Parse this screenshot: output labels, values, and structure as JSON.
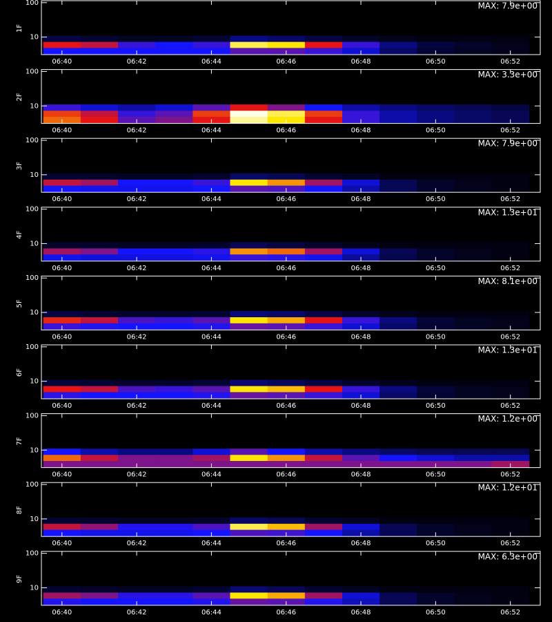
{
  "chart_data": [
    {
      "type": "heatmap",
      "ylabel": "1F",
      "annotation": "MAX: 7.9e+00",
      "log_y": true,
      "xlim": [
        39.45,
        52.8
      ],
      "ylim": [
        3.1,
        114
      ],
      "xticks": [
        {
          "value": 40,
          "label": "06:40"
        },
        {
          "value": 42,
          "label": "06:42"
        },
        {
          "value": 44,
          "label": "06:44"
        },
        {
          "value": 46,
          "label": "06:46"
        },
        {
          "value": 48,
          "label": "06:48"
        },
        {
          "value": 50,
          "label": "06:50"
        },
        {
          "value": 52,
          "label": "06:52"
        }
      ],
      "yticks": [
        10,
        100
      ],
      "x": [
        40,
        41,
        42,
        43,
        44,
        45,
        46,
        47,
        48,
        49,
        50,
        51,
        52
      ],
      "y": [
        4,
        6,
        9
      ],
      "z": [
        [
          0.3,
          0.3,
          0.3,
          0.3,
          0.3,
          0.4,
          0.4,
          0.35,
          0.25,
          0.12,
          0.06,
          0.04,
          0.03
        ],
        [
          0.6,
          0.55,
          0.35,
          0.3,
          0.35,
          0.9,
          0.85,
          0.6,
          0.35,
          0.15,
          0.08,
          0.05,
          0.03
        ],
        [
          0.08,
          0.06,
          0.04,
          0.04,
          0.06,
          0.15,
          0.12,
          0.08,
          0.05,
          0.03,
          0.02,
          0.02,
          0.02
        ]
      ]
    },
    {
      "type": "heatmap",
      "ylabel": "2F",
      "annotation": "MAX: 3.3e+00",
      "log_y": true,
      "xlim": [
        39.45,
        52.8
      ],
      "ylim": [
        3.1,
        114
      ],
      "xticks": [
        {
          "value": 40,
          "label": "06:40"
        },
        {
          "value": 42,
          "label": "06:42"
        },
        {
          "value": 44,
          "label": "06:44"
        },
        {
          "value": 46,
          "label": "06:46"
        },
        {
          "value": 48,
          "label": "06:48"
        },
        {
          "value": 50,
          "label": "06:50"
        },
        {
          "value": 52,
          "label": "06:52"
        }
      ],
      "yticks": [
        10,
        100
      ],
      "x": [
        40,
        41,
        42,
        43,
        44,
        45,
        46,
        47,
        48,
        49,
        50,
        51,
        52
      ],
      "y": [
        4,
        6,
        9
      ],
      "z": [
        [
          0.7,
          0.6,
          0.4,
          0.45,
          0.6,
          0.95,
          0.85,
          0.6,
          0.35,
          0.2,
          0.15,
          0.12,
          0.1
        ],
        [
          0.65,
          0.55,
          0.35,
          0.4,
          0.65,
          1,
          0.9,
          0.65,
          0.35,
          0.2,
          0.15,
          0.12,
          0.1
        ],
        [
          0.35,
          0.25,
          0.2,
          0.25,
          0.4,
          0.6,
          0.45,
          0.3,
          0.2,
          0.15,
          0.12,
          0.1,
          0.08
        ]
      ]
    },
    {
      "type": "heatmap",
      "ylabel": "3F",
      "annotation": "MAX: 7.9e+00",
      "log_y": true,
      "xlim": [
        39.45,
        52.8
      ],
      "ylim": [
        3.1,
        114
      ],
      "xticks": [
        {
          "value": 40,
          "label": "06:40"
        },
        {
          "value": 42,
          "label": "06:42"
        },
        {
          "value": 44,
          "label": "06:44"
        },
        {
          "value": 46,
          "label": "06:46"
        },
        {
          "value": 48,
          "label": "06:48"
        },
        {
          "value": 50,
          "label": "06:50"
        },
        {
          "value": 52,
          "label": "06:52"
        }
      ],
      "yticks": [
        10,
        100
      ],
      "x": [
        40,
        41,
        42,
        43,
        44,
        45,
        46,
        47,
        48,
        49,
        50,
        51,
        52
      ],
      "y": [
        4,
        6,
        9
      ],
      "z": [
        [
          0.3,
          0.28,
          0.28,
          0.28,
          0.3,
          0.4,
          0.38,
          0.3,
          0.2,
          0.1,
          0.05,
          0.03,
          0.02
        ],
        [
          0.55,
          0.5,
          0.3,
          0.3,
          0.35,
          0.85,
          0.75,
          0.5,
          0.25,
          0.1,
          0.05,
          0.03,
          0.02
        ],
        [
          0.06,
          0.05,
          0.04,
          0.04,
          0.05,
          0.12,
          0.1,
          0.06,
          0.04,
          0.02,
          0.02,
          0.02,
          0.02
        ]
      ]
    },
    {
      "type": "heatmap",
      "ylabel": "4F",
      "annotation": "MAX: 1.3e+01",
      "log_y": true,
      "xlim": [
        39.45,
        52.8
      ],
      "ylim": [
        3.1,
        114
      ],
      "xticks": [
        {
          "value": 40,
          "label": "06:40"
        },
        {
          "value": 42,
          "label": "06:42"
        },
        {
          "value": 44,
          "label": "06:44"
        },
        {
          "value": 46,
          "label": "06:46"
        },
        {
          "value": 48,
          "label": "06:48"
        },
        {
          "value": 50,
          "label": "06:50"
        },
        {
          "value": 52,
          "label": "06:52"
        }
      ],
      "yticks": [
        10,
        100
      ],
      "x": [
        40,
        41,
        42,
        43,
        44,
        45,
        46,
        47,
        48,
        49,
        50,
        51,
        52
      ],
      "y": [
        4,
        6,
        9
      ],
      "z": [
        [
          0.28,
          0.26,
          0.26,
          0.26,
          0.28,
          0.35,
          0.33,
          0.28,
          0.18,
          0.09,
          0.05,
          0.03,
          0.02
        ],
        [
          0.5,
          0.45,
          0.3,
          0.3,
          0.33,
          0.75,
          0.7,
          0.5,
          0.25,
          0.1,
          0.05,
          0.03,
          0.02
        ],
        [
          0.05,
          0.05,
          0.04,
          0.04,
          0.05,
          0.1,
          0.08,
          0.05,
          0.03,
          0.02,
          0.02,
          0.02,
          0.02
        ]
      ]
    },
    {
      "type": "heatmap",
      "ylabel": "5F",
      "annotation": "MAX: 8.1e+00",
      "log_y": true,
      "xlim": [
        39.45,
        52.8
      ],
      "ylim": [
        3.1,
        114
      ],
      "xticks": [
        {
          "value": 40,
          "label": "06:40"
        },
        {
          "value": 42,
          "label": "06:42"
        },
        {
          "value": 44,
          "label": "06:44"
        },
        {
          "value": 46,
          "label": "06:46"
        },
        {
          "value": 48,
          "label": "06:48"
        },
        {
          "value": 50,
          "label": "06:50"
        },
        {
          "value": 52,
          "label": "06:52"
        }
      ],
      "yticks": [
        10,
        100
      ],
      "x": [
        40,
        41,
        42,
        43,
        44,
        45,
        46,
        47,
        48,
        49,
        50,
        51,
        52
      ],
      "y": [
        4,
        6,
        9
      ],
      "z": [
        [
          0.35,
          0.32,
          0.3,
          0.3,
          0.32,
          0.42,
          0.4,
          0.35,
          0.25,
          0.12,
          0.06,
          0.04,
          0.03
        ],
        [
          0.62,
          0.55,
          0.38,
          0.35,
          0.4,
          0.85,
          0.78,
          0.6,
          0.35,
          0.15,
          0.07,
          0.04,
          0.03
        ],
        [
          0.08,
          0.06,
          0.05,
          0.05,
          0.06,
          0.14,
          0.12,
          0.08,
          0.05,
          0.03,
          0.02,
          0.02,
          0.02
        ]
      ]
    },
    {
      "type": "heatmap",
      "ylabel": "6F",
      "annotation": "MAX: 1.3e+01",
      "log_y": true,
      "xlim": [
        39.45,
        52.8
      ],
      "ylim": [
        3.1,
        114
      ],
      "xticks": [
        {
          "value": 40,
          "label": "06:40"
        },
        {
          "value": 42,
          "label": "06:42"
        },
        {
          "value": 44,
          "label": "06:44"
        },
        {
          "value": 46,
          "label": "06:46"
        },
        {
          "value": 48,
          "label": "06:48"
        },
        {
          "value": 50,
          "label": "06:50"
        },
        {
          "value": 52,
          "label": "06:52"
        }
      ],
      "yticks": [
        10,
        100
      ],
      "x": [
        40,
        41,
        42,
        43,
        44,
        45,
        46,
        47,
        48,
        49,
        50,
        51,
        52
      ],
      "y": [
        4,
        6,
        9
      ],
      "z": [
        [
          0.33,
          0.3,
          0.3,
          0.3,
          0.32,
          0.42,
          0.4,
          0.35,
          0.25,
          0.12,
          0.06,
          0.04,
          0.03
        ],
        [
          0.6,
          0.55,
          0.38,
          0.35,
          0.4,
          0.85,
          0.8,
          0.6,
          0.35,
          0.15,
          0.07,
          0.04,
          0.03
        ],
        [
          0.07,
          0.06,
          0.05,
          0.05,
          0.06,
          0.13,
          0.11,
          0.08,
          0.05,
          0.03,
          0.02,
          0.02,
          0.02
        ]
      ]
    },
    {
      "type": "heatmap",
      "ylabel": "7F",
      "annotation": "MAX: 1.2e+00",
      "log_y": true,
      "xlim": [
        39.45,
        52.8
      ],
      "ylim": [
        3.1,
        114
      ],
      "xticks": [
        {
          "value": 40,
          "label": "06:40"
        },
        {
          "value": 42,
          "label": "06:42"
        },
        {
          "value": 44,
          "label": "06:44"
        },
        {
          "value": 46,
          "label": "06:46"
        },
        {
          "value": 48,
          "label": "06:48"
        },
        {
          "value": 50,
          "label": "06:50"
        },
        {
          "value": 52,
          "label": "06:52"
        }
      ],
      "yticks": [
        10,
        100
      ],
      "x": [
        40,
        41,
        42,
        43,
        44,
        45,
        46,
        47,
        48,
        49,
        50,
        51,
        52
      ],
      "y": [
        4,
        6,
        9
      ],
      "z": [
        [
          0.45,
          0.45,
          0.45,
          0.45,
          0.45,
          0.45,
          0.45,
          0.45,
          0.45,
          0.45,
          0.45,
          0.45,
          0.5
        ],
        [
          0.7,
          0.55,
          0.45,
          0.45,
          0.5,
          0.85,
          0.75,
          0.55,
          0.4,
          0.3,
          0.25,
          0.2,
          0.2
        ],
        [
          0.3,
          0.2,
          0.15,
          0.15,
          0.25,
          0.4,
          0.3,
          0.2,
          0.15,
          0.12,
          0.1,
          0.1,
          0.1
        ]
      ]
    },
    {
      "type": "heatmap",
      "ylabel": "8F",
      "annotation": "MAX: 1.2e+01",
      "log_y": true,
      "xlim": [
        39.45,
        52.8
      ],
      "ylim": [
        3.1,
        114
      ],
      "xticks": [
        {
          "value": 40,
          "label": "06:40"
        },
        {
          "value": 42,
          "label": "06:42"
        },
        {
          "value": 44,
          "label": "06:44"
        },
        {
          "value": 46,
          "label": "06:46"
        },
        {
          "value": 48,
          "label": "06:48"
        },
        {
          "value": 50,
          "label": "06:50"
        },
        {
          "value": 52,
          "label": "06:52"
        }
      ],
      "yticks": [
        10,
        100
      ],
      "x": [
        40,
        41,
        42,
        43,
        44,
        45,
        46,
        47,
        48,
        49,
        50,
        51,
        52
      ],
      "y": [
        4,
        6,
        9
      ],
      "z": [
        [
          0.3,
          0.28,
          0.28,
          0.28,
          0.3,
          0.38,
          0.36,
          0.3,
          0.2,
          0.1,
          0.05,
          0.03,
          0.02
        ],
        [
          0.55,
          0.48,
          0.32,
          0.32,
          0.38,
          0.9,
          0.8,
          0.5,
          0.25,
          0.1,
          0.05,
          0.03,
          0.02
        ],
        [
          0.06,
          0.05,
          0.04,
          0.04,
          0.05,
          0.12,
          0.1,
          0.06,
          0.04,
          0.02,
          0.02,
          0.02,
          0.02
        ]
      ]
    },
    {
      "type": "heatmap",
      "ylabel": "9F",
      "annotation": "MAX: 6.3e+00",
      "log_y": true,
      "xlim": [
        39.45,
        52.8
      ],
      "ylim": [
        3.1,
        114
      ],
      "xticks": [
        {
          "value": 40,
          "label": "06:40"
        },
        {
          "value": 42,
          "label": "06:42"
        },
        {
          "value": 44,
          "label": "06:44"
        },
        {
          "value": 46,
          "label": "06:46"
        },
        {
          "value": 48,
          "label": "06:48"
        },
        {
          "value": 50,
          "label": "06:50"
        },
        {
          "value": 52,
          "label": "06:52"
        }
      ],
      "yticks": [
        10,
        100
      ],
      "x": [
        40,
        41,
        42,
        43,
        44,
        45,
        46,
        47,
        48,
        49,
        50,
        51,
        52
      ],
      "y": [
        4,
        6,
        9
      ],
      "z": [
        [
          0.32,
          0.3,
          0.3,
          0.3,
          0.32,
          0.42,
          0.4,
          0.32,
          0.22,
          0.1,
          0.05,
          0.03,
          0.02
        ],
        [
          0.5,
          0.45,
          0.33,
          0.33,
          0.4,
          0.85,
          0.78,
          0.5,
          0.25,
          0.1,
          0.05,
          0.03,
          0.02
        ],
        [
          0.06,
          0.05,
          0.04,
          0.04,
          0.06,
          0.13,
          0.1,
          0.06,
          0.04,
          0.02,
          0.02,
          0.02,
          0.02
        ]
      ]
    }
  ]
}
